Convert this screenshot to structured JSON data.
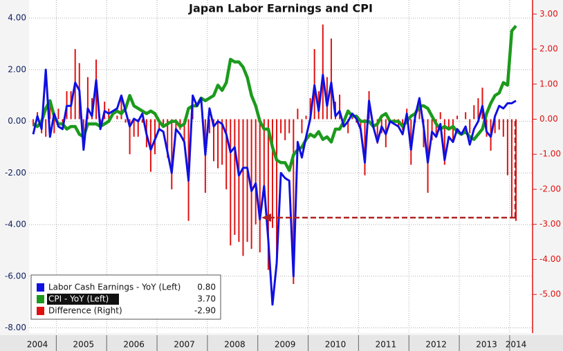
{
  "chart_data": {
    "type": "line",
    "title": "Japan Labor Earnings and CPI",
    "categories": [
      null,
      "2004",
      null,
      null,
      null,
      null,
      null,
      null,
      null,
      null,
      null,
      null,
      "2005",
      null,
      null,
      null,
      null,
      null,
      null,
      null,
      null,
      null,
      null,
      null,
      "2006",
      null,
      null,
      null,
      null,
      null,
      null,
      null,
      null,
      null,
      null,
      null,
      "2007",
      null,
      null,
      null,
      null,
      null,
      null,
      null,
      null,
      null,
      null,
      null,
      "2008",
      null,
      null,
      null,
      null,
      null,
      null,
      null,
      null,
      null,
      null,
      null,
      "2009",
      null,
      null,
      null,
      null,
      null,
      null,
      null,
      null,
      null,
      null,
      null,
      "2010",
      null,
      null,
      null,
      null,
      null,
      null,
      null,
      null,
      null,
      null,
      null,
      "2011",
      null,
      null,
      null,
      null,
      null,
      null,
      null,
      null,
      null,
      null,
      null,
      "2012",
      null,
      null,
      null,
      null,
      null,
      null,
      null,
      null,
      null,
      null,
      null,
      "2013",
      null,
      null,
      null,
      null,
      null,
      null,
      "2014"
    ],
    "series": [
      {
        "name": "Labor Cash Earnings - YoY (Left)",
        "color": "#1010e0",
        "axis": "y",
        "kind": "line",
        "legend_value": "0.80",
        "values": [
          -0.5,
          0.2,
          -0.3,
          2.0,
          -0.6,
          0.3,
          -0.2,
          -0.3,
          0.6,
          0.6,
          1.5,
          1.2,
          -1.1,
          0.5,
          0.2,
          1.6,
          -0.3,
          0.4,
          0.3,
          0.4,
          0.5,
          1.0,
          0.4,
          -0.2,
          0.1,
          0.0,
          0.3,
          -0.5,
          -1.1,
          -0.7,
          -0.3,
          -0.4,
          -1.2,
          -2.0,
          -0.3,
          -0.5,
          -0.8,
          -2.3,
          1.0,
          0.6,
          0.9,
          -1.3,
          0.5,
          -0.2,
          0.0,
          -0.1,
          -0.5,
          -1.2,
          -1.0,
          -2.1,
          -1.8,
          -1.8,
          -2.7,
          -2.4,
          -3.8,
          -2.5,
          -4.6,
          -7.1,
          -5.5,
          -2.0,
          -2.2,
          -2.3,
          -6.0,
          -0.8,
          -1.4,
          -0.6,
          0.1,
          1.4,
          0.4,
          1.8,
          0.6,
          1.5,
          0.2,
          0.4,
          -0.2,
          0.0,
          0.3,
          0.1,
          -0.3,
          -1.6,
          0.8,
          -0.2,
          -0.8,
          -0.2,
          -0.5,
          0.0,
          -0.1,
          -0.2,
          -0.5,
          0.3,
          -1.1,
          0.2,
          0.9,
          -0.2,
          -1.6,
          -0.4,
          -0.6,
          -0.1,
          -1.5,
          -0.6,
          -0.8,
          -0.3,
          -0.5,
          -0.2,
          -0.9,
          -0.3,
          0.0,
          0.6,
          -0.4,
          -0.6,
          0.2,
          0.6,
          0.5,
          0.7,
          0.7,
          0.8
        ]
      },
      {
        "name": "CPI - YoY (Left)",
        "color": "#1c9a1c",
        "axis": "y",
        "kind": "line",
        "legend_value": "3.70",
        "values": [
          -0.1,
          -0.2,
          0.0,
          0.5,
          0.8,
          0.2,
          -0.1,
          -0.1,
          -0.3,
          -0.2,
          -0.2,
          -0.5,
          -0.6,
          -0.1,
          -0.1,
          -0.1,
          -0.2,
          -0.1,
          0.0,
          0.3,
          0.4,
          0.3,
          0.5,
          1.0,
          0.6,
          0.5,
          0.4,
          0.3,
          0.4,
          0.3,
          0.0,
          -0.2,
          -0.1,
          0.0,
          0.0,
          -0.2,
          -0.1,
          0.5,
          0.6,
          0.6,
          0.9,
          0.8,
          0.9,
          1.0,
          1.4,
          1.2,
          1.5,
          2.4,
          2.3,
          2.3,
          2.1,
          1.7,
          1.0,
          0.6,
          0.0,
          -0.3,
          -0.3,
          -1.0,
          -1.5,
          -1.6,
          -1.6,
          -1.9,
          -1.3,
          -1.1,
          -1.0,
          -0.7,
          -0.5,
          -0.6,
          -0.4,
          -0.7,
          -0.6,
          -0.8,
          -0.3,
          -0.3,
          0.0,
          0.4,
          0.2,
          0.2,
          0.0,
          0.0,
          0.0,
          -0.2,
          -0.1,
          0.2,
          0.3,
          0.0,
          0.0,
          0.0,
          -0.2,
          0.0,
          0.2,
          0.3,
          0.6,
          0.6,
          0.5,
          0.2,
          -0.1,
          -0.3,
          -0.2,
          -0.3,
          -0.2,
          -0.4,
          -0.5,
          -0.4,
          -0.6,
          -0.7,
          -0.5,
          -0.3,
          0.3,
          0.7,
          1.0,
          1.1,
          1.5,
          1.4,
          3.5,
          3.7
        ]
      },
      {
        "name": "Difference (Right)",
        "color": "#e01010",
        "axis": "y2",
        "kind": "bar",
        "legend_value": "-2.90",
        "values": [
          -0.2,
          0.2,
          -0.4,
          -0.5,
          0.5,
          -0.4,
          0.3,
          -0.1,
          0.8,
          0.8,
          2.0,
          1.6,
          -0.5,
          1.2,
          0.6,
          1.7,
          -0.1,
          0.5,
          0.3,
          0.0,
          0.1,
          0.7,
          -0.1,
          -1.0,
          -0.5,
          -0.5,
          -0.1,
          -0.8,
          -1.5,
          -1.0,
          -0.3,
          -0.2,
          -1.1,
          -2.0,
          -0.3,
          -0.3,
          -0.7,
          -2.9,
          0.4,
          0.0,
          0.0,
          -2.1,
          -0.4,
          -1.2,
          -1.4,
          -1.3,
          -2.0,
          -3.6,
          -3.3,
          -3.5,
          -3.9,
          -3.5,
          -3.7,
          -3.0,
          -3.8,
          -2.2,
          -4.3,
          -3.1,
          -4.0,
          -0.4,
          -0.6,
          -0.4,
          -4.7,
          0.3,
          -0.4,
          0.1,
          0.6,
          2.0,
          0.8,
          2.7,
          1.2,
          2.3,
          0.5,
          0.7,
          -0.2,
          -0.4,
          0.1,
          -0.1,
          -0.3,
          -1.6,
          0.8,
          0.0,
          -0.7,
          -0.4,
          -0.8,
          0.0,
          -0.1,
          -0.2,
          -0.3,
          0.3,
          -1.3,
          -0.1,
          0.3,
          -0.8,
          -2.1,
          -0.6,
          -0.5,
          0.2,
          -1.3,
          -0.3,
          -0.6,
          0.1,
          0.0,
          0.2,
          -0.4,
          0.4,
          0.6,
          0.9,
          -0.5,
          -0.9,
          -0.4,
          -0.3,
          -0.5,
          -1.6,
          -2.8,
          -2.9
        ]
      }
    ],
    "ylim": [
      -8.2,
      4.7
    ],
    "yticks": [
      {
        "value": 4,
        "label": "4.00"
      },
      {
        "value": 2,
        "label": "2.00"
      },
      {
        "value": 0,
        "label": "0.00"
      },
      {
        "value": -2,
        "label": "-2.00"
      },
      {
        "value": -4,
        "label": "-4.00"
      },
      {
        "value": -6,
        "label": "-6.00"
      },
      {
        "value": -8,
        "label": "-8.00"
      }
    ],
    "y2lim": [
      -6.1,
      3.4
    ],
    "y2ticks": [
      {
        "value": 3,
        "label": "3.00"
      },
      {
        "value": 2,
        "label": "2.00"
      },
      {
        "value": 1,
        "label": "1.00"
      },
      {
        "value": 0,
        "label": "0.00"
      },
      {
        "value": -1,
        "label": "-1.00"
      },
      {
        "value": -2,
        "label": "-2.00"
      },
      {
        "value": -3,
        "label": "-3.00"
      },
      {
        "value": -4,
        "label": "-4.00"
      },
      {
        "value": -5,
        "label": "-5.00"
      }
    ],
    "grid": true
  }
}
